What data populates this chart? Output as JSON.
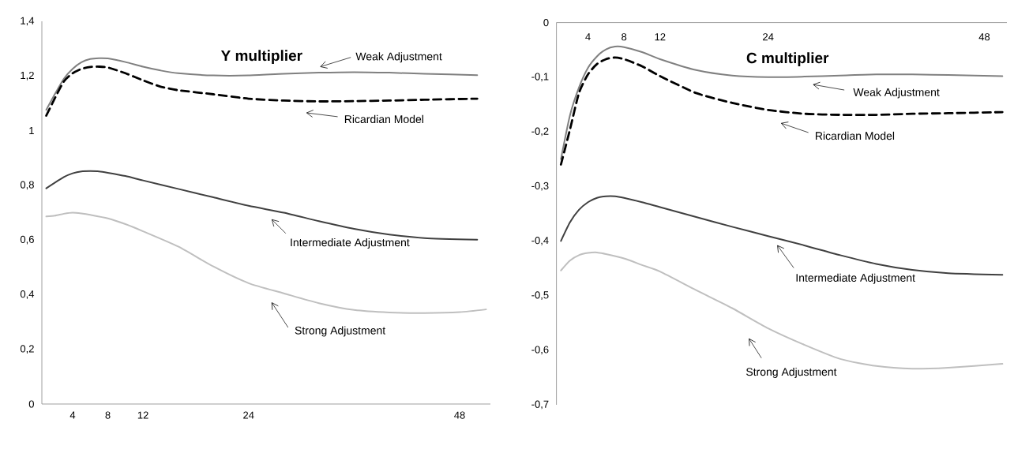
{
  "chart_data": [
    {
      "type": "line",
      "title": "Y multiplier",
      "xlim": [
        0.5,
        51.5
      ],
      "ylim": [
        0,
        1.4
      ],
      "xticks": [
        4,
        8,
        12,
        24,
        48
      ],
      "yticks": [
        0,
        {
          "value": 0.2,
          "label": "0,2"
        },
        {
          "value": 0.4,
          "label": "0,4"
        },
        {
          "value": 0.6,
          "label": "0,6"
        },
        {
          "value": 0.8,
          "label": "0,8"
        },
        1,
        {
          "value": 1.2,
          "label": "1,2"
        },
        {
          "value": 1.4,
          "label": "1,4"
        }
      ],
      "annotations": [
        "Weak Adjustment",
        "Ricardian Model",
        "Intermediate Adjustment",
        "Strong Adjustment"
      ],
      "series": [
        {
          "color": "#808080",
          "x": [
            1,
            2,
            3,
            4,
            5,
            6,
            7,
            8,
            10,
            12,
            14,
            16,
            20,
            24,
            28,
            32,
            36,
            40,
            44,
            50
          ],
          "values": [
            1.076,
            1.135,
            1.19,
            1.226,
            1.25,
            1.262,
            1.265,
            1.264,
            1.251,
            1.234,
            1.22,
            1.21,
            1.202,
            1.202,
            1.208,
            1.212,
            1.214,
            1.212,
            1.208,
            1.203
          ]
        },
        {
          "color": "#000000",
          "line_style": "dashed",
          "x": [
            1,
            2,
            3,
            4,
            5,
            6,
            7,
            8,
            10,
            12,
            14,
            16,
            20,
            24,
            28,
            32,
            36,
            40,
            44,
            50
          ],
          "values": [
            1.055,
            1.12,
            1.18,
            1.21,
            1.226,
            1.233,
            1.234,
            1.231,
            1.21,
            1.184,
            1.161,
            1.148,
            1.133,
            1.117,
            1.11,
            1.107,
            1.108,
            1.11,
            1.113,
            1.117
          ]
        },
        {
          "color": "#404040",
          "x": [
            1,
            3,
            4,
            5,
            6,
            7,
            8,
            10,
            12,
            16,
            20,
            24,
            28,
            32,
            36,
            40,
            44,
            50
          ],
          "values": [
            0.789,
            0.83,
            0.844,
            0.851,
            0.852,
            0.851,
            0.846,
            0.834,
            0.818,
            0.787,
            0.756,
            0.725,
            0.7,
            0.669,
            0.641,
            0.62,
            0.607,
            0.601
          ]
        },
        {
          "color": "#bfbfbf",
          "x": [
            1,
            2,
            3,
            4,
            5,
            6,
            8,
            10,
            12,
            16,
            20,
            24,
            28,
            32,
            36,
            40,
            44,
            48,
            51
          ],
          "values": [
            0.686,
            0.689,
            0.696,
            0.7,
            0.697,
            0.692,
            0.679,
            0.658,
            0.632,
            0.576,
            0.503,
            0.442,
            0.405,
            0.369,
            0.344,
            0.335,
            0.333,
            0.336,
            0.346
          ]
        }
      ]
    },
    {
      "type": "line",
      "title": "C multiplier",
      "xlim": [
        0.5,
        50.5
      ],
      "ylim": [
        -0.7,
        0
      ],
      "xticks": [
        4,
        8,
        12,
        24,
        48
      ],
      "yticks": [
        {
          "value": -0.7,
          "label": "-0,7"
        },
        {
          "value": -0.6,
          "label": "-0,6"
        },
        {
          "value": -0.5,
          "label": "-0,5"
        },
        {
          "value": -0.4,
          "label": "-0,4"
        },
        {
          "value": -0.3,
          "label": "-0,3"
        },
        {
          "value": -0.2,
          "label": "-0,2"
        },
        {
          "value": -0.1,
          "label": "-0,1"
        },
        0
      ],
      "annotations": [
        "Weak Adjustment",
        "Ricardian Model",
        "Intermediate Adjustment",
        "Strong Adjustment"
      ],
      "series": [
        {
          "color": "#808080",
          "x": [
            1,
            2,
            3,
            4,
            5,
            6,
            7,
            8,
            10,
            12,
            16,
            20,
            24,
            28,
            32,
            36,
            40,
            44,
            50
          ],
          "values": [
            -0.25,
            -0.17,
            -0.119,
            -0.083,
            -0.062,
            -0.049,
            -0.044,
            -0.045,
            -0.054,
            -0.067,
            -0.087,
            -0.097,
            -0.1,
            -0.099,
            -0.097,
            -0.095,
            -0.095,
            -0.096,
            -0.098
          ]
        },
        {
          "color": "#000000",
          "line_style": "dashed",
          "x": [
            1,
            2,
            3,
            4,
            5,
            6,
            7,
            8,
            10,
            12,
            16,
            20,
            24,
            28,
            32,
            36,
            40,
            44,
            50
          ],
          "values": [
            -0.26,
            -0.196,
            -0.129,
            -0.095,
            -0.076,
            -0.067,
            -0.064,
            -0.067,
            -0.08,
            -0.098,
            -0.129,
            -0.147,
            -0.16,
            -0.167,
            -0.169,
            -0.169,
            -0.167,
            -0.166,
            -0.164
          ]
        },
        {
          "color": "#404040",
          "x": [
            1,
            2,
            3,
            4,
            5,
            6,
            7,
            8,
            10,
            12,
            16,
            20,
            24,
            28,
            32,
            36,
            40,
            44,
            50
          ],
          "values": [
            -0.4,
            -0.366,
            -0.343,
            -0.329,
            -0.321,
            -0.318,
            -0.318,
            -0.321,
            -0.329,
            -0.338,
            -0.356,
            -0.374,
            -0.391,
            -0.408,
            -0.426,
            -0.442,
            -0.453,
            -0.459,
            -0.462
          ]
        },
        {
          "color": "#bfbfbf",
          "x": [
            1,
            2,
            3,
            4,
            5,
            6,
            8,
            10,
            12,
            16,
            20,
            24,
            28,
            32,
            36,
            40,
            44,
            50
          ],
          "values": [
            -0.454,
            -0.436,
            -0.426,
            -0.422,
            -0.421,
            -0.424,
            -0.432,
            -0.444,
            -0.456,
            -0.49,
            -0.523,
            -0.56,
            -0.59,
            -0.616,
            -0.629,
            -0.634,
            -0.632,
            -0.625
          ]
        }
      ]
    }
  ]
}
